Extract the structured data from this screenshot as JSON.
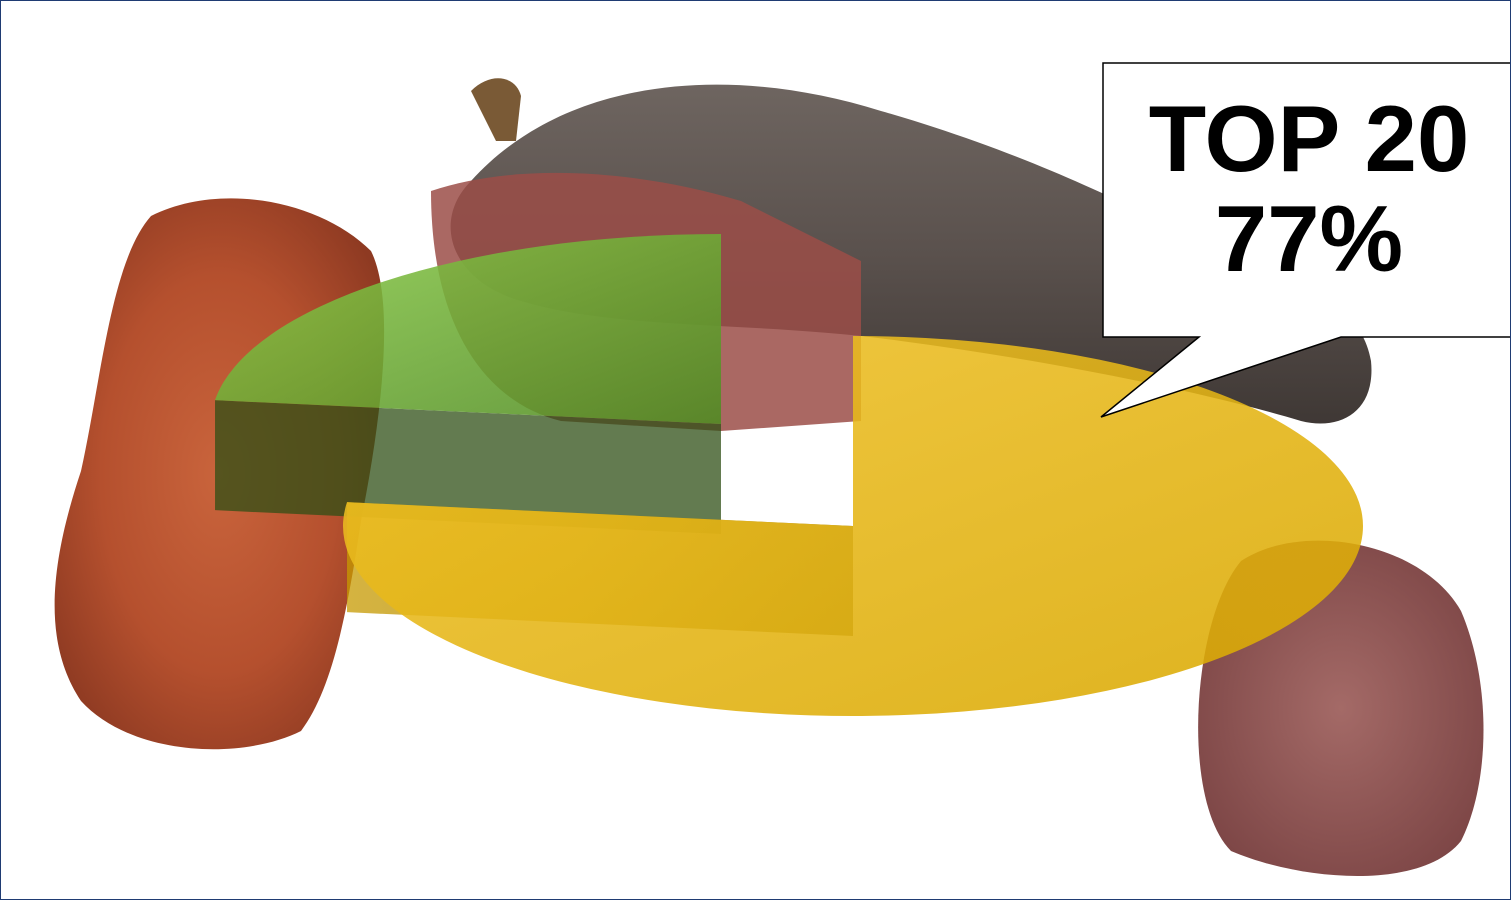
{
  "chart_data": {
    "type": "pie",
    "style": "3d-exploded",
    "slices": [
      {
        "value": 77,
        "color": "#e1ae00"
      },
      {
        "value": 23,
        "color": "#5f9a2e"
      }
    ],
    "annotation": {
      "line1": "TOP 20",
      "line2": "77%"
    }
  },
  "colors": {
    "gold_top": "#e1ae00",
    "gold_side": "#a98300",
    "green_top": "#5f9a2e",
    "green_side": "#2f4f16",
    "frame": "#1f3b73"
  },
  "background_image": "cured-sausages-photo"
}
